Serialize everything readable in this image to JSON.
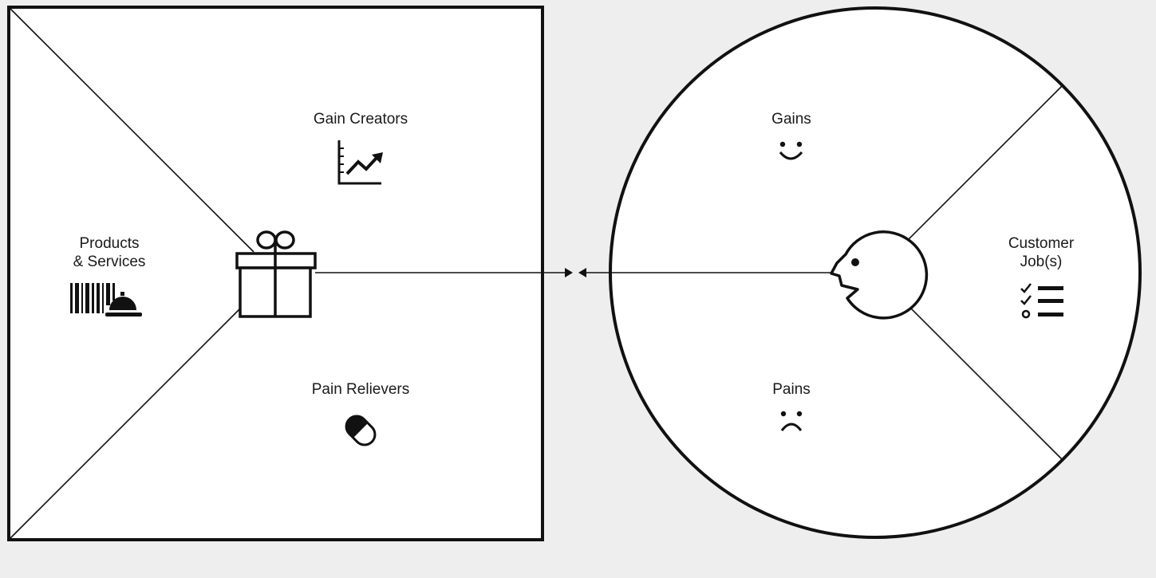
{
  "diagram": {
    "value_map": {
      "products_services_line1": "Products",
      "products_services_line2": "& Services",
      "gain_creators": "Gain Creators",
      "pain_relievers": "Pain Relievers"
    },
    "customer_profile": {
      "gains": "Gains",
      "pains": "Pains",
      "customer_jobs_line1": "Customer",
      "customer_jobs_line2": "Job(s)"
    },
    "icons": {
      "products": "barcode-icon",
      "services": "cloche-icon",
      "value_map": "gift-icon",
      "gain_creators": "growth-chart-icon",
      "pain_relievers": "pill-icon",
      "customer": "face-profile-icon",
      "gains": "smiley-icon",
      "pains": "frown-icon",
      "customer_jobs": "checklist-icon"
    },
    "colors": {
      "background": "#eeeeee",
      "canvas": "#ffffff",
      "ink": "#111111"
    }
  }
}
